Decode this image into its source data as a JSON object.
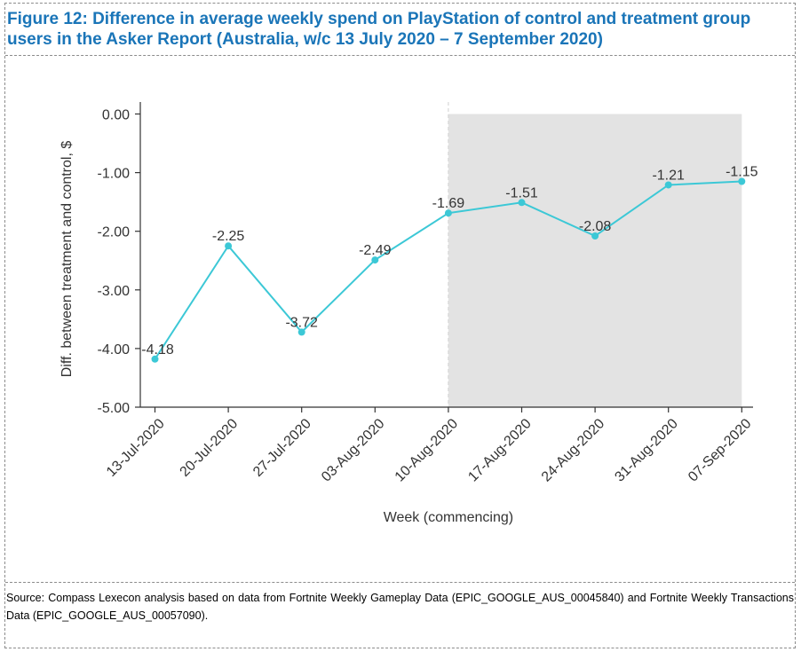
{
  "figure": {
    "title": "Figure 12: Difference in average weekly spend on PlayStation of control and treatment group users in the Asker Report (Australia, w/c 13 July 2020 – 7 September 2020)",
    "source": "Source: Compass Lexecon analysis based on data from Fortnite Weekly Gameplay Data (EPIC_GOOGLE_AUS_00045840) and Fortnite Weekly Transactions Data (EPIC_GOOGLE_AUS_00057090)."
  },
  "chart_data": {
    "type": "line",
    "xlabel": "Week (commencing)",
    "ylabel": "Diff. between treatment and control, $",
    "categories": [
      "13-Jul-2020",
      "20-Jul-2020",
      "27-Jul-2020",
      "03-Aug-2020",
      "10-Aug-2020",
      "17-Aug-2020",
      "24-Aug-2020",
      "31-Aug-2020",
      "07-Sep-2020"
    ],
    "series": [
      {
        "values": [
          -4.18,
          -2.25,
          -3.72,
          -2.49,
          -1.69,
          -1.51,
          -2.08,
          -1.21,
          -1.15
        ]
      }
    ],
    "data_labels": [
      "-4.18",
      "-2.25",
      "-3.72",
      "-2.49",
      "-1.69",
      "-1.51",
      "-2.08",
      "-1.21",
      "-1.15"
    ],
    "yticks": [
      0,
      -1,
      -2,
      -3,
      -4,
      -5
    ],
    "ytick_labels": [
      "0.00",
      "-1.00",
      "-2.00",
      "-3.00",
      "-4.00",
      "-5.00"
    ],
    "ylim": [
      -5,
      0
    ],
    "shaded_region": {
      "from": "10-Aug-2020",
      "to": "07-Sep-2020"
    },
    "grid": false,
    "colors": {
      "line": "#3cc8d6",
      "marker": "#3cc8d6",
      "shade": "#e3e3e3",
      "axis": "#333333",
      "text": "#333333"
    }
  }
}
